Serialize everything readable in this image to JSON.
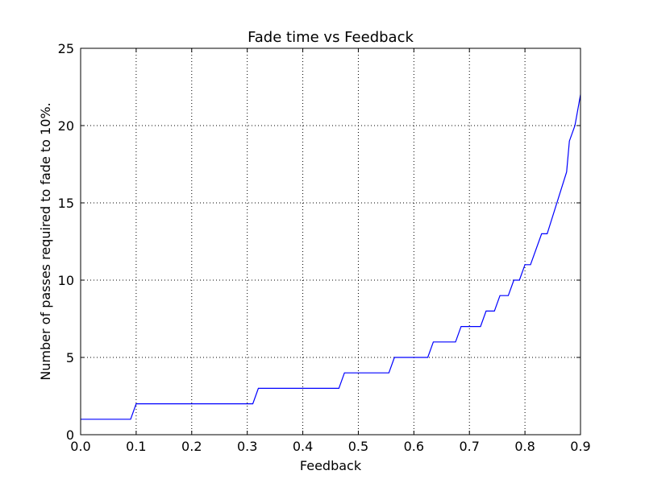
{
  "chart_data": {
    "type": "line",
    "title": "Fade time vs Feedback",
    "xlabel": "Feedback",
    "ylabel": "Number of passes required to fade to 10%.",
    "xlim": [
      0.0,
      0.9
    ],
    "ylim": [
      0,
      25
    ],
    "x_ticks": [
      0.0,
      0.1,
      0.2,
      0.3,
      0.4,
      0.5,
      0.6,
      0.7,
      0.8,
      0.9
    ],
    "x_tick_labels": [
      "0.0",
      "0.1",
      "0.2",
      "0.3",
      "0.4",
      "0.5",
      "0.6",
      "0.7",
      "0.8",
      "0.9"
    ],
    "y_ticks": [
      0,
      5,
      10,
      15,
      20,
      25
    ],
    "y_tick_labels": [
      "0",
      "5",
      "10",
      "15",
      "20",
      "25"
    ],
    "grid": true,
    "series": [
      {
        "color": "#0000ff",
        "x": [
          0.0,
          0.09,
          0.1,
          0.31,
          0.32,
          0.465,
          0.475,
          0.555,
          0.565,
          0.625,
          0.635,
          0.675,
          0.685,
          0.72,
          0.73,
          0.745,
          0.755,
          0.77,
          0.78,
          0.79,
          0.8,
          0.81,
          0.83,
          0.84,
          0.875,
          0.88,
          0.89,
          0.9
        ],
        "y": [
          1,
          1,
          2,
          2,
          3,
          3,
          4,
          4,
          5,
          5,
          6,
          6,
          7,
          7,
          8,
          8,
          9,
          9,
          10,
          10,
          11,
          11,
          13,
          13,
          17,
          19,
          20,
          22
        ]
      }
    ]
  }
}
